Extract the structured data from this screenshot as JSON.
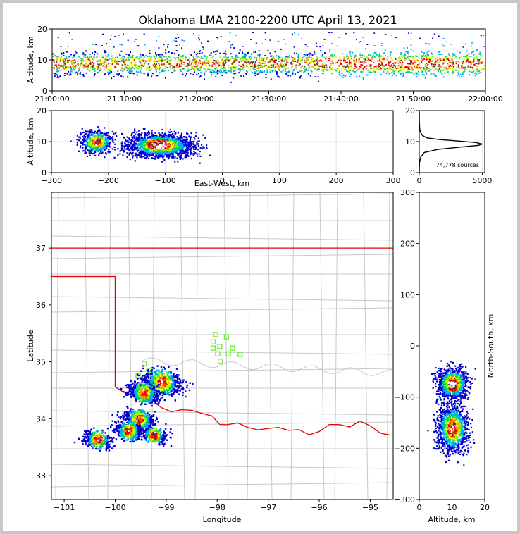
{
  "title": "Oklahoma LMA 2100-2200 UTC April 13, 2021",
  "chart_data": [
    {
      "type": "heatmap",
      "name": "altitude-time",
      "xlabel": "",
      "ylabel": "Altitude, km",
      "xticks": [
        "21:00:00",
        "21:10:00",
        "21:20:00",
        "21:30:00",
        "21:40:00",
        "21:50:00",
        "22:00:00"
      ],
      "xlim_minutes": [
        0,
        60
      ],
      "yticks": [
        0,
        10,
        20
      ],
      "ylim": [
        0,
        20
      ],
      "density_band_km": [
        3,
        15
      ],
      "peak_altitude_km": 9
    },
    {
      "type": "heatmap",
      "name": "altitude-east-west",
      "xlabel": "East-West, km",
      "ylabel": "Altitude, km",
      "xticks": [
        -300,
        -200,
        -100,
        0,
        100,
        200,
        300
      ],
      "xlim": [
        -300,
        300
      ],
      "yticks": [
        0,
        10,
        20
      ],
      "ylim": [
        0,
        20
      ],
      "clusters": [
        {
          "x_range": [
            -250,
            -190
          ],
          "peak_x": -222,
          "peak_alt": 10
        },
        {
          "x_range": [
            -185,
            -60
          ],
          "peak_x": -110,
          "peak_alt": 9
        }
      ]
    },
    {
      "type": "line",
      "name": "altitude-histogram",
      "xticks": [
        0,
        5000
      ],
      "xlim": [
        0,
        5200
      ],
      "yticks": [
        0,
        10,
        20
      ],
      "ylim": [
        0,
        20
      ],
      "annotation": "74,778 sources",
      "profile": [
        [
          0,
          0
        ],
        [
          10,
          3
        ],
        [
          120,
          5
        ],
        [
          400,
          6.5
        ],
        [
          1500,
          7.5
        ],
        [
          3200,
          8.2
        ],
        [
          4700,
          8.8
        ],
        [
          4990,
          9.2
        ],
        [
          4500,
          9.7
        ],
        [
          3000,
          10.2
        ],
        [
          1500,
          10.7
        ],
        [
          600,
          11.2
        ],
        [
          250,
          12
        ],
        [
          100,
          13
        ],
        [
          40,
          14
        ],
        [
          15,
          15.5
        ],
        [
          5,
          17
        ],
        [
          0,
          20
        ]
      ]
    },
    {
      "type": "heatmap",
      "name": "plan-view-map",
      "xlabel": "Longitude",
      "ylabel": "Latitude",
      "xticks": [
        -101,
        -100,
        -99,
        -98,
        -97,
        -96,
        -95
      ],
      "xlim": [
        -101.25,
        -94.55
      ],
      "yticks": [
        33,
        34,
        35,
        36,
        37
      ],
      "ylim": [
        32.58,
        37.98
      ],
      "stations": [
        [
          -98.03,
          35.48
        ],
        [
          -97.82,
          35.44
        ],
        [
          -98.08,
          35.35
        ],
        [
          -97.95,
          35.27
        ],
        [
          -98.08,
          35.24
        ],
        [
          -97.7,
          35.24
        ],
        [
          -97.99,
          35.14
        ],
        [
          -97.78,
          35.14
        ],
        [
          -97.55,
          35.13
        ],
        [
          -97.94,
          35.01
        ],
        [
          -99.43,
          34.97
        ],
        [
          -99.34,
          34.85
        ],
        [
          -99.55,
          34.76
        ],
        [
          -99.28,
          34.72
        ],
        [
          -99.5,
          34.58
        ]
      ],
      "storm_cells": [
        {
          "lon": -99.1,
          "lat": 34.65
        },
        {
          "lon": -99.45,
          "lat": 34.47
        },
        {
          "lon": -99.55,
          "lat": 34.0
        },
        {
          "lon": -99.75,
          "lat": 33.8
        },
        {
          "lon": -99.25,
          "lat": 33.72
        },
        {
          "lon": -100.35,
          "lat": 33.65
        }
      ]
    },
    {
      "type": "heatmap",
      "name": "north-south-altitude",
      "xlabel": "Altitude, km",
      "ylabel": "North-South, km",
      "xticks": [
        0,
        10,
        20
      ],
      "xlim": [
        0,
        20
      ],
      "yticks": [
        300,
        200,
        100,
        0,
        -100,
        -200,
        -300
      ],
      "ylim": [
        -300,
        300
      ],
      "clusters": [
        {
          "y_range": [
            -105,
            -40
          ],
          "peak_y": -72,
          "peak_alt": 10
        },
        {
          "y_range": [
            -210,
            -110
          ],
          "peak_y": -160,
          "peak_alt": 10
        }
      ]
    }
  ],
  "colors": {
    "heat": [
      "#0000cc",
      "#00aaff",
      "#00cc66",
      "#66ff00",
      "#ffff00",
      "#ff9900",
      "#ff0000",
      "#cc0000",
      "#444444",
      "#ffffff"
    ],
    "border": "#e00000",
    "county": "#c8c8c8",
    "station": "#66ee33"
  }
}
